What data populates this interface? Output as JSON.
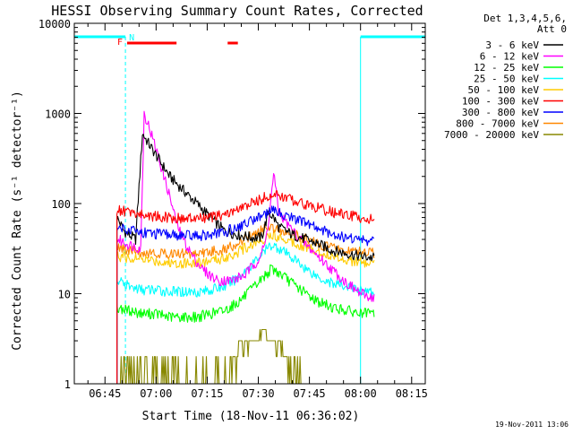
{
  "chart_data": {
    "type": "line",
    "title": "HESSI Observing Summary Count Rates, Corrected",
    "xlabel": "Start Time (18-Nov-11 06:36:02)",
    "ylabel": "Corrected Count Rate (s⁻¹ detector⁻¹)",
    "x_unit": "minutes since 06:36:02",
    "xlim": [
      0,
      103
    ],
    "ylim": [
      1,
      10000
    ],
    "yscale": "log",
    "grid": false,
    "x_ticks": [
      {
        "t": 9,
        "label": "06:45"
      },
      {
        "t": 24,
        "label": "07:00"
      },
      {
        "t": 39,
        "label": "07:15"
      },
      {
        "t": 54,
        "label": "07:30"
      },
      {
        "t": 69,
        "label": "07:45"
      },
      {
        "t": 84,
        "label": "08:00"
      },
      {
        "t": 99,
        "label": "08:15"
      }
    ],
    "y_ticks": [
      {
        "v": 1,
        "label": "1"
      },
      {
        "v": 10,
        "label": "10"
      },
      {
        "v": 100,
        "label": "100"
      },
      {
        "v": 1000,
        "label": "1000"
      },
      {
        "v": 10000,
        "label": "10000"
      }
    ],
    "legend": {
      "position": "right",
      "header": [
        "Det 1,3,4,5,6,",
        "Att 0"
      ],
      "entries": [
        {
          "label": "3 - 6 keV",
          "color": "#000000"
        },
        {
          "label": "6 - 12 keV",
          "color": "#ff00ff"
        },
        {
          "label": "12 - 25 keV",
          "color": "#00ff00"
        },
        {
          "label": "25 - 50 keV",
          "color": "#00ffff"
        },
        {
          "label": "50 - 100 keV",
          "color": "#ffcc00"
        },
        {
          "label": "100 - 300 keV",
          "color": "#ff0000"
        },
        {
          "label": "300 - 800 keV",
          "color": "#0000ff"
        },
        {
          "label": "800 - 7000 keV",
          "color": "#ff8800"
        },
        {
          "label": "7000 - 20000 keV",
          "color": "#888800"
        }
      ]
    },
    "series": [
      {
        "name": "3 - 6 keV",
        "color": "#000000",
        "x": [
          12.5,
          13.5,
          14.5,
          16,
          18,
          20,
          22,
          25,
          28,
          32,
          36,
          40,
          44,
          48,
          52,
          55,
          57,
          58.5,
          60,
          64,
          68,
          72,
          76,
          80,
          84,
          88
        ],
        "y": [
          70,
          60,
          50,
          45,
          40,
          600,
          450,
          300,
          200,
          140,
          100,
          70,
          50,
          45,
          42,
          42,
          80,
          70,
          55,
          45,
          40,
          35,
          30,
          28,
          26,
          25
        ]
      },
      {
        "name": "6 - 12 keV",
        "color": "#ff00ff",
        "x": [
          12.5,
          14,
          16,
          18,
          19.5,
          20.5,
          22,
          24,
          26,
          28,
          30,
          32,
          35,
          38,
          42,
          46,
          50,
          54,
          56,
          57.5,
          58.5,
          60,
          64,
          68,
          72,
          76,
          80,
          84,
          88
        ],
        "y": [
          40,
          38,
          35,
          33,
          32,
          1000,
          700,
          400,
          220,
          120,
          60,
          40,
          25,
          18,
          14,
          14,
          16,
          24,
          35,
          90,
          220,
          80,
          50,
          35,
          25,
          18,
          13,
          10,
          9
        ]
      },
      {
        "name": "12 - 25 keV",
        "color": "#00ff00",
        "x": [
          12.5,
          16,
          20,
          24,
          28,
          32,
          36,
          40,
          44,
          48,
          52,
          56,
          58,
          60,
          64,
          68,
          72,
          76,
          80,
          84,
          88
        ],
        "y": [
          7,
          6.5,
          6,
          6,
          5.5,
          5.5,
          5.5,
          6,
          6.5,
          8,
          11,
          16,
          19,
          17,
          13,
          10,
          8,
          7,
          6.5,
          6,
          6
        ]
      },
      {
        "name": "25 - 50 keV",
        "color": "#00ffff",
        "x": [
          12.5,
          16,
          20,
          24,
          28,
          32,
          36,
          40,
          44,
          48,
          52,
          56,
          58,
          60,
          64,
          68,
          72,
          76,
          80,
          84,
          88
        ],
        "y": [
          14,
          12,
          11,
          11,
          10.5,
          10.5,
          10.5,
          11,
          12,
          15,
          21,
          30,
          35,
          32,
          25,
          19,
          15,
          13,
          12,
          11,
          10
        ]
      },
      {
        "name": "50 - 100 keV",
        "color": "#ffcc00",
        "x": [
          12.5,
          16,
          20,
          24,
          28,
          32,
          36,
          40,
          44,
          48,
          52,
          56,
          58,
          60,
          64,
          68,
          72,
          76,
          80,
          84,
          88
        ],
        "y": [
          26,
          25,
          24,
          23,
          22,
          22,
          22,
          23,
          25,
          29,
          35,
          42,
          45,
          43,
          38,
          33,
          29,
          26,
          24,
          22,
          21
        ]
      },
      {
        "name": "100 - 300 keV",
        "color": "#ff0000",
        "x": [
          12.5,
          16,
          20,
          24,
          28,
          32,
          36,
          40,
          44,
          48,
          52,
          56,
          58,
          60,
          64,
          68,
          72,
          76,
          80,
          84,
          88
        ],
        "y": [
          85,
          80,
          75,
          72,
          70,
          68,
          68,
          70,
          75,
          85,
          100,
          118,
          125,
          122,
          110,
          98,
          88,
          80,
          74,
          70,
          66
        ]
      },
      {
        "name": "300 - 800 keV",
        "color": "#0000ff",
        "x": [
          12.5,
          16,
          20,
          24,
          28,
          32,
          36,
          40,
          44,
          48,
          52,
          56,
          58,
          60,
          64,
          68,
          72,
          76,
          80,
          84,
          88
        ],
        "y": [
          55,
          52,
          48,
          46,
          45,
          44,
          44,
          45,
          48,
          55,
          65,
          78,
          82,
          80,
          70,
          60,
          52,
          46,
          42,
          40,
          38
        ]
      },
      {
        "name": "800 - 7000 keV",
        "color": "#ff8800",
        "x": [
          12.5,
          16,
          20,
          24,
          28,
          32,
          36,
          40,
          44,
          48,
          52,
          56,
          58,
          60,
          64,
          68,
          72,
          76,
          80,
          84,
          88
        ],
        "y": [
          32,
          30,
          29,
          28,
          28,
          28,
          28,
          29,
          31,
          36,
          44,
          52,
          55,
          53,
          46,
          40,
          35,
          32,
          30,
          29,
          28
        ]
      },
      {
        "name": "7000 - 20000 keV",
        "color": "#888800",
        "x": [
          12.5,
          14,
          44,
          46,
          48,
          50,
          52,
          54,
          56,
          58,
          60,
          62,
          64,
          66,
          68,
          70
        ],
        "y": [
          1,
          1.5,
          1,
          1.5,
          2,
          2.5,
          3,
          3.5,
          3.5,
          3,
          2.5,
          2,
          1.5,
          1.5,
          1,
          1
        ]
      }
    ],
    "annotations": {
      "saa_label": "N",
      "flare_label": "F",
      "saa_intervals": [
        [
          0,
          15
        ],
        [
          84,
          103
        ]
      ],
      "flare_bars": [
        [
          15.5,
          30
        ],
        [
          45,
          48
        ]
      ]
    },
    "footer_timestamp": "19-Nov-2011 13:06"
  }
}
